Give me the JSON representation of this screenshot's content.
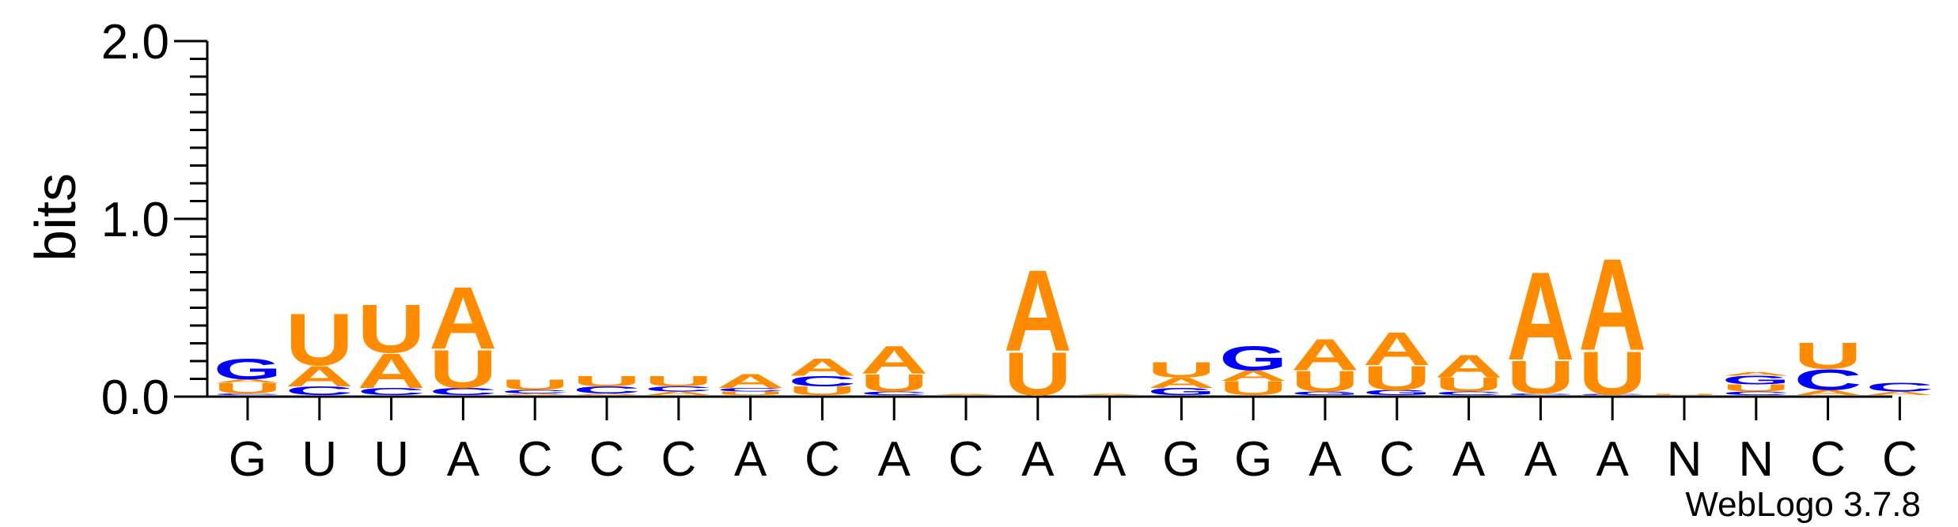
{
  "chart_data": {
    "type": "sequence-logo",
    "ylabel": "bits",
    "ylim": [
      0,
      2.0
    ],
    "y_ticks": [
      "0.0",
      "1.0",
      "2.0"
    ],
    "x_labels": [
      "G",
      "U",
      "U",
      "A",
      "C",
      "C",
      "C",
      "A",
      "C",
      "A",
      "C",
      "A",
      "A",
      "G",
      "G",
      "A",
      "C",
      "A",
      "A",
      "A",
      "N",
      "N",
      "C",
      "C"
    ],
    "credit": "WebLogo 3.7.8",
    "colors": {
      "A": "#ff8c00",
      "U": "#ff8c00",
      "C": "#0000ff",
      "G": "#0000ff"
    },
    "positions": [
      [
        [
          "C",
          0.01
        ],
        [
          "U",
          0.06
        ],
        [
          "A",
          0.02
        ],
        [
          "G",
          0.12
        ]
      ],
      [
        [
          "C",
          0.05
        ],
        [
          "A",
          0.12
        ],
        [
          "U",
          0.3
        ]
      ],
      [
        [
          "C",
          0.04
        ],
        [
          "A",
          0.2
        ],
        [
          "U",
          0.28
        ]
      ],
      [
        [
          "C",
          0.04
        ],
        [
          "U",
          0.22
        ],
        [
          "A",
          0.36
        ]
      ],
      [
        [
          "A",
          0.01
        ],
        [
          "C",
          0.02
        ],
        [
          "U",
          0.06
        ]
      ],
      [
        [
          "A",
          0.01
        ],
        [
          "C",
          0.04
        ],
        [
          "U",
          0.06
        ]
      ],
      [
        [
          "A",
          0.02
        ],
        [
          "C",
          0.03
        ],
        [
          "U",
          0.06
        ]
      ],
      [
        [
          "U",
          0.02
        ],
        [
          "C",
          0.02
        ],
        [
          "A",
          0.08
        ]
      ],
      [
        [
          "U",
          0.05
        ],
        [
          "C",
          0.06
        ],
        [
          "A",
          0.1
        ]
      ],
      [
        [
          "C",
          0.02
        ],
        [
          "U",
          0.1
        ],
        [
          "A",
          0.16
        ]
      ],
      [
        [
          "A",
          0.005
        ]
      ],
      [
        [
          "U",
          0.25
        ],
        [
          "A",
          0.47
        ]
      ],
      [
        [
          "A",
          0.005
        ]
      ],
      [
        [
          "G",
          0.04
        ],
        [
          "A",
          0.06
        ],
        [
          "U",
          0.09
        ]
      ],
      [
        [
          "U",
          0.08
        ],
        [
          "A",
          0.06
        ],
        [
          "G",
          0.14
        ]
      ],
      [
        [
          "G",
          0.02
        ],
        [
          "U",
          0.12
        ],
        [
          "A",
          0.18
        ]
      ],
      [
        [
          "G",
          0.03
        ],
        [
          "U",
          0.14
        ],
        [
          "A",
          0.19
        ]
      ],
      [
        [
          "C",
          0.02
        ],
        [
          "U",
          0.08
        ],
        [
          "A",
          0.13
        ]
      ],
      [
        [
          "C",
          0.01
        ],
        [
          "U",
          0.19
        ],
        [
          "A",
          0.51
        ]
      ],
      [
        [
          "C",
          0.005
        ],
        [
          "U",
          0.25
        ],
        [
          "A",
          0.53
        ]
      ],
      [
        [
          "U",
          0.005
        ]
      ],
      [
        [
          "C",
          0.02
        ],
        [
          "U",
          0.04
        ],
        [
          "G",
          0.05
        ],
        [
          "A",
          0.02
        ]
      ],
      [
        [
          "A",
          0.03
        ],
        [
          "C",
          0.12
        ],
        [
          "U",
          0.15
        ]
      ],
      [
        [
          "A",
          0.02
        ],
        [
          "C",
          0.05
        ]
      ]
    ]
  }
}
